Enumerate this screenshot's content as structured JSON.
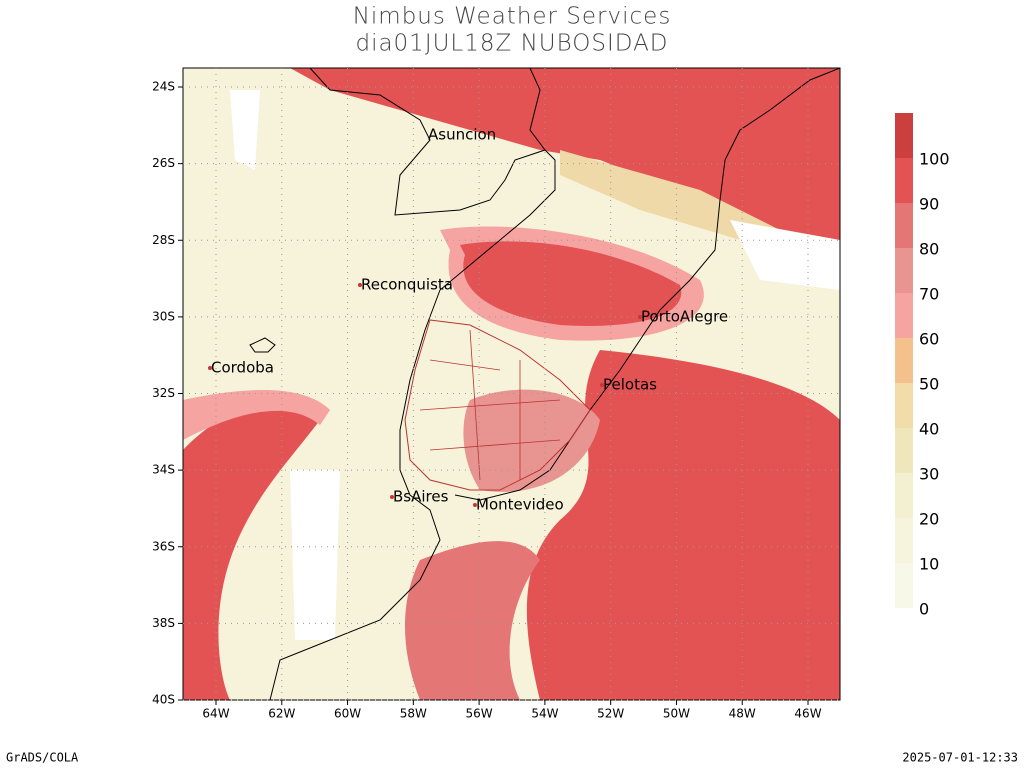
{
  "title": "Nimbus Weather Services",
  "subtitle": "dia01JUL18Z NUBOSIDAD",
  "lat_ticks": [
    "24S",
    "26S",
    "28S",
    "30S",
    "32S",
    "34S",
    "36S",
    "38S",
    "40S"
  ],
  "lon_ticks": [
    "64W",
    "62W",
    "60W",
    "58W",
    "56W",
    "54W",
    "52W",
    "50W",
    "48W",
    "46W"
  ],
  "cities": [
    "Asuncion",
    "Reconquista",
    "PortoAlegre",
    "Cordoba",
    "Pelotas",
    "BsAires",
    "Montevideo"
  ],
  "colorbar": {
    "labels": [
      "0",
      "10",
      "20",
      "30",
      "40",
      "50",
      "60",
      "70",
      "80",
      "90",
      "100"
    ],
    "colors": [
      "#f8f8e8",
      "#f6f4dc",
      "#f3f0d2",
      "#efe6bc",
      "#f1dcaa",
      "#f4c18c",
      "#f5a4a2",
      "#e89491",
      "#e57676",
      "#e45353",
      "#cc3f3f"
    ]
  },
  "footer": {
    "left": "GrADS/COLA",
    "right": "2025-07-01-12:33"
  }
}
